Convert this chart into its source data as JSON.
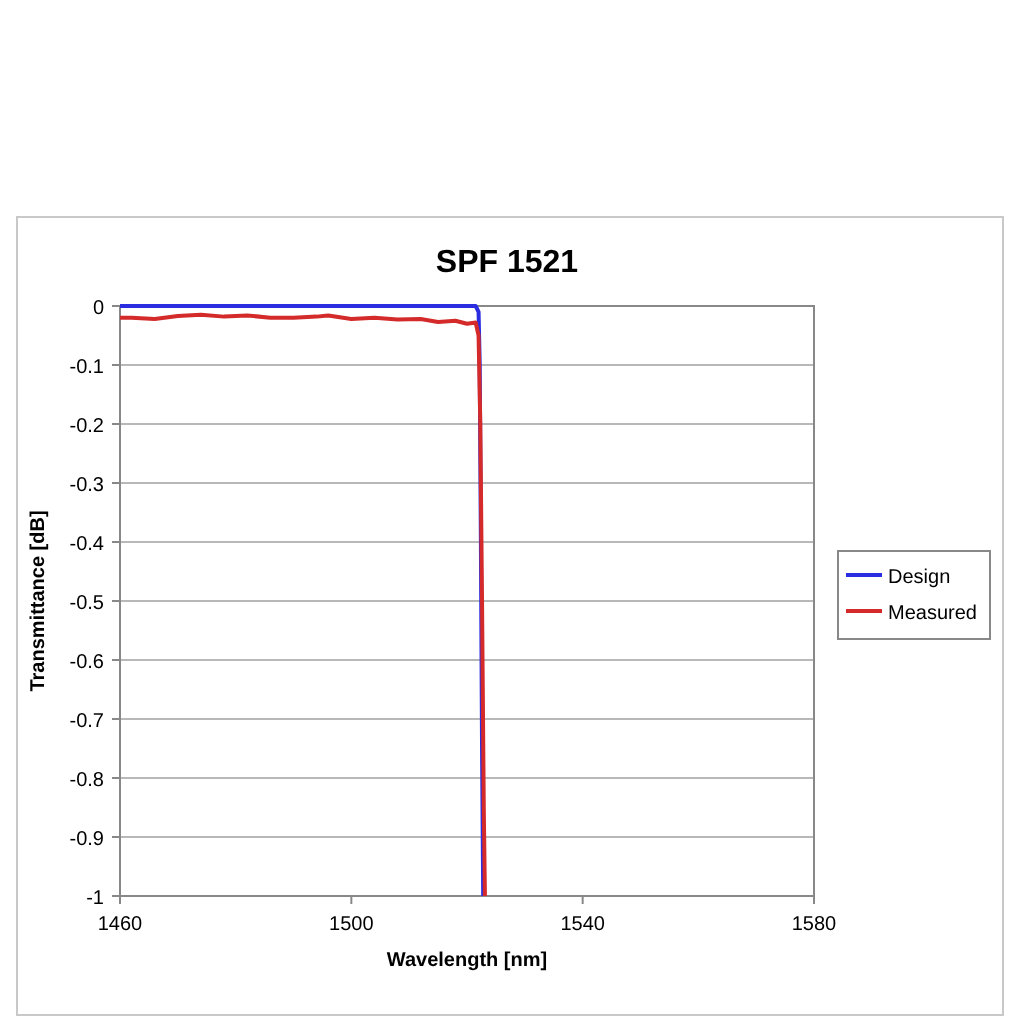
{
  "chart_data": {
    "type": "line",
    "title": "SPF 1521",
    "xlabel": "Wavelength [nm]",
    "ylabel": "Transmittance [dB]",
    "xlim": [
      1460,
      1580
    ],
    "xticks": [
      1460,
      1500,
      1540,
      1580
    ],
    "ylim": [
      -1,
      0
    ],
    "yticks": [
      0,
      -0.1,
      -0.2,
      -0.3,
      -0.4,
      -0.5,
      -0.6,
      -0.7,
      -0.8,
      -0.9,
      -1
    ],
    "grid": "y",
    "legend": "right",
    "marker": "none",
    "line_style": "solid",
    "series": [
      {
        "name": "Design",
        "color": "#2a2ee0",
        "x": [
          1460,
          1480,
          1500,
          1515,
          1521.5,
          1522,
          1522.2,
          1522.4,
          1522.6,
          1522.8
        ],
        "values": [
          0,
          0,
          0,
          0,
          0,
          -0.01,
          -0.1,
          -0.4,
          -0.75,
          -1
        ]
      },
      {
        "name": "Measured",
        "color": "#d42a2a",
        "x": [
          1460,
          1462,
          1466,
          1470,
          1474,
          1478,
          1482,
          1486,
          1490,
          1494,
          1496,
          1500,
          1504,
          1508,
          1512,
          1515,
          1518,
          1520,
          1521.5,
          1522,
          1522.3,
          1522.6,
          1522.9,
          1523.1
        ],
        "values": [
          -0.02,
          -0.02,
          -0.022,
          -0.017,
          -0.015,
          -0.018,
          -0.016,
          -0.02,
          -0.02,
          -0.018,
          -0.016,
          -0.022,
          -0.02,
          -0.023,
          -0.022,
          -0.027,
          -0.025,
          -0.03,
          -0.028,
          -0.05,
          -0.2,
          -0.5,
          -0.85,
          -1
        ]
      }
    ]
  }
}
